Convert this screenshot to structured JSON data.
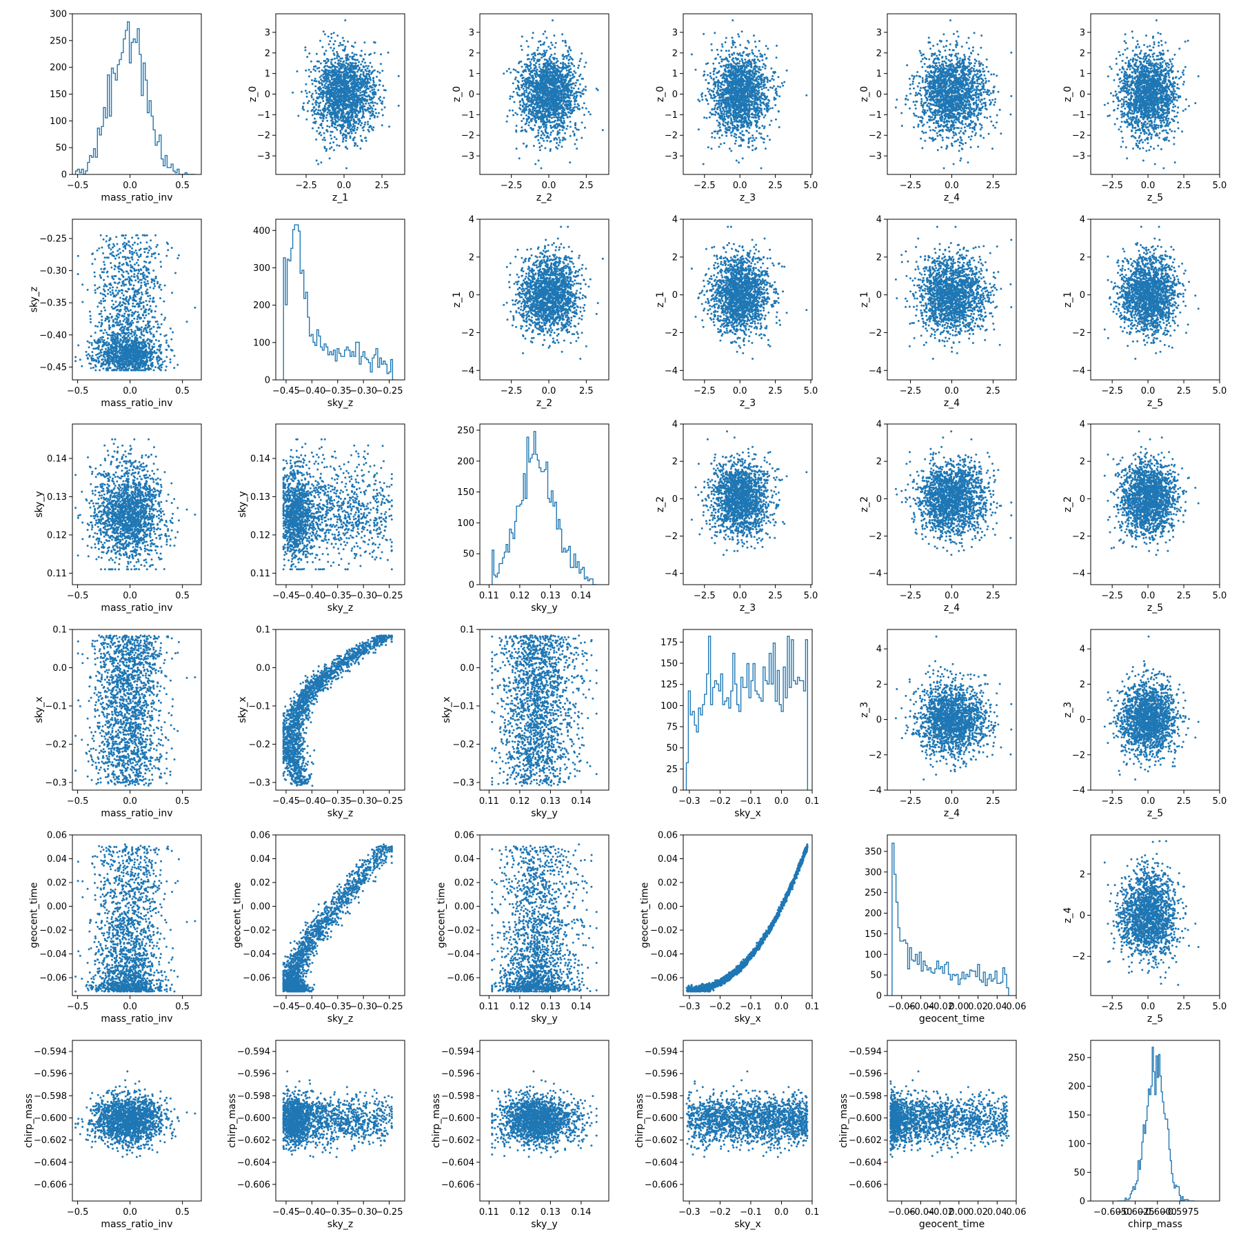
{
  "figure": {
    "colors": {
      "accent": "#1f77b4",
      "axes": "#000000",
      "background": "#ffffff"
    },
    "variables": [
      {
        "id": "mass_ratio_inv",
        "label": "mass_ratio_inv",
        "lim": [
          -0.55,
          0.68
        ],
        "ticks": [
          -0.5,
          0.0,
          0.5
        ],
        "tick_labels": [
          "−0.5",
          "0.0",
          "0.5"
        ],
        "mean": -0.02,
        "sd": 0.17,
        "lo": -0.52,
        "hi": 0.62
      },
      {
        "id": "sky_z",
        "label": "sky_z",
        "lim": [
          -0.47,
          -0.22
        ],
        "ticks": [
          -0.45,
          -0.4,
          -0.35,
          -0.3,
          -0.25
        ],
        "tick_labels": [
          "−0.45",
          "−0.40",
          "−0.35",
          "−0.30",
          "−0.25"
        ],
        "mean": -0.385,
        "sd": 0.025,
        "lo": -0.455,
        "hi": -0.24
      },
      {
        "id": "sky_y",
        "label": "sky_y",
        "lim": [
          0.107,
          0.149
        ],
        "ticks": [
          0.11,
          0.12,
          0.13,
          0.14
        ],
        "tick_labels": [
          "0.11",
          "0.12",
          "0.13",
          "0.14"
        ],
        "mean": 0.1255,
        "sd": 0.0055,
        "lo": 0.111,
        "hi": 0.145
      },
      {
        "id": "sky_x",
        "label": "sky_x",
        "lim": [
          -0.32,
          0.1
        ],
        "ticks": [
          -0.3,
          -0.2,
          -0.1,
          0.0,
          0.1
        ],
        "tick_labels": [
          "−0.3",
          "−0.2",
          "−0.1",
          "0.0",
          "0.1"
        ],
        "mean": -0.12,
        "sd": 0.085,
        "lo": -0.31,
        "hi": 0.085
      },
      {
        "id": "geocent_time",
        "label": "geocent_time",
        "lim": [
          -0.075,
          0.06
        ],
        "ticks": [
          -0.06,
          -0.04,
          -0.02,
          0.0,
          0.02,
          0.04,
          0.06
        ],
        "tick_labels": [
          "−0.06",
          "−0.04",
          "−0.02",
          "0.00",
          "0.02",
          "0.04",
          "0.06"
        ],
        "mean": -0.045,
        "sd": 0.02,
        "lo": -0.07,
        "hi": 0.052
      },
      {
        "id": "chirp_mass",
        "label": "chirp_mass",
        "lim": [
          -0.6075,
          -0.593
        ],
        "ticks": [
          -0.606,
          -0.604,
          -0.602,
          -0.6,
          -0.598,
          -0.596,
          -0.594
        ],
        "tick_labels": [
          "−0.606",
          "−0.604",
          "−0.602",
          "−0.600",
          "−0.598",
          "−0.596",
          "−0.594"
        ],
        "mean": -0.6003,
        "sd": 0.0012,
        "lo": -0.6045,
        "hi": -0.5958
      },
      {
        "id": "z_0",
        "label": "z_0",
        "lim": [
          -3.9,
          3.9
        ],
        "ticks": [
          -3,
          -2,
          -1,
          0,
          1,
          2,
          3
        ],
        "tick_labels": [
          "−3",
          "−2",
          "−1",
          "0",
          "1",
          "2",
          "3"
        ],
        "mean": 0,
        "sd": 1,
        "lo": -3.6,
        "hi": 3.5
      },
      {
        "id": "z_1",
        "label": "z_1",
        "lim": [
          -4.5,
          4.0
        ],
        "ticks": [
          -4,
          -2,
          0,
          2,
          4
        ],
        "tick_labels": [
          "−4",
          "−2",
          "0",
          "2",
          "4"
        ],
        "xticks": [
          -2.5,
          0.0,
          2.5
        ],
        "xtick_labels": [
          "−2.5",
          "0.0",
          "2.5"
        ],
        "mean": 0,
        "sd": 1,
        "lo": -4.2,
        "hi": 3.6
      },
      {
        "id": "z_2",
        "label": "z_2",
        "lim": [
          -4.6,
          4.0
        ],
        "ticks": [
          -4,
          -2,
          0,
          2,
          4
        ],
        "tick_labels": [
          "−4",
          "−2",
          "0",
          "2",
          "4"
        ],
        "xticks": [
          -2.5,
          0.0,
          2.5
        ],
        "xtick_labels": [
          "−2.5",
          "0.0",
          "2.5"
        ],
        "mean": 0,
        "sd": 1,
        "lo": -4.2,
        "hi": 3.6
      },
      {
        "id": "z_3",
        "label": "z_3",
        "lim": [
          -4.0,
          5.1
        ],
        "ticks": [
          -4,
          -2,
          0,
          2,
          4
        ],
        "tick_labels": [
          "−4",
          "−2",
          "0",
          "2",
          "4"
        ],
        "xticks": [
          -2.5,
          0.0,
          2.5,
          5.0
        ],
        "xtick_labels": [
          "−2.5",
          "0.0",
          "2.5",
          "5.0"
        ],
        "mean": 0,
        "sd": 1,
        "lo": -3.5,
        "hi": 4.8
      },
      {
        "id": "z_4",
        "label": "z_4",
        "lim": [
          -3.9,
          3.9
        ],
        "ticks": [
          -2,
          0,
          2
        ],
        "tick_labels": [
          "−2",
          "0",
          "2"
        ],
        "xticks": [
          -2.5,
          0.0,
          2.5
        ],
        "xtick_labels": [
          "−2.5",
          "0.0",
          "2.5"
        ],
        "mean": 0,
        "sd": 1,
        "lo": -3.6,
        "hi": 3.7
      },
      {
        "id": "z_5",
        "label": "z_5",
        "lim": [
          -4.0,
          5.0
        ],
        "ticks": [
          -2.5,
          0.0,
          2.5,
          5.0
        ],
        "tick_labels": [
          "−2.5",
          "0.0",
          "2.5",
          "5.0"
        ],
        "mean": 0,
        "sd": 1,
        "lo": -3.6,
        "hi": 4.7
      }
    ],
    "chirp_mass_hist_xticks": [
      -0.605,
      -0.6025,
      -0.6,
      -0.5975
    ],
    "chirp_mass_hist_xtick_labels": [
      "−0.6050",
      "−0.6025",
      "−0.6000",
      "−0.5975"
    ]
  },
  "chart_data": {
    "type": "scatter",
    "title": "",
    "samples_per_panel": 1800,
    "grid": false,
    "legend": "none",
    "panels": [
      {
        "row": 0,
        "col": 0,
        "type": "histogram",
        "x": "mass_ratio_inv",
        "ylim": [
          0,
          300
        ],
        "yticks": [
          0,
          50,
          100,
          150,
          200,
          250,
          300
        ],
        "peak": 285
      },
      {
        "row": 0,
        "col": 1,
        "type": "scatter",
        "x": "z_1",
        "y": "z_0"
      },
      {
        "row": 0,
        "col": 2,
        "type": "scatter",
        "x": "z_2",
        "y": "z_0"
      },
      {
        "row": 0,
        "col": 3,
        "type": "scatter",
        "x": "z_3",
        "y": "z_0"
      },
      {
        "row": 0,
        "col": 4,
        "type": "scatter",
        "x": "z_4",
        "y": "z_0"
      },
      {
        "row": 0,
        "col": 5,
        "type": "scatter",
        "x": "z_5",
        "y": "z_0"
      },
      {
        "row": 1,
        "col": 0,
        "type": "scatter",
        "x": "mass_ratio_inv",
        "y": "sky_z"
      },
      {
        "row": 1,
        "col": 1,
        "type": "histogram",
        "x": "sky_z",
        "ylim": [
          0,
          430
        ],
        "yticks": [
          0,
          100,
          200,
          300,
          400
        ],
        "peak": 415
      },
      {
        "row": 1,
        "col": 2,
        "type": "scatter",
        "x": "z_2",
        "y": "z_1"
      },
      {
        "row": 1,
        "col": 3,
        "type": "scatter",
        "x": "z_3",
        "y": "z_1"
      },
      {
        "row": 1,
        "col": 4,
        "type": "scatter",
        "x": "z_4",
        "y": "z_1"
      },
      {
        "row": 1,
        "col": 5,
        "type": "scatter",
        "x": "z_5",
        "y": "z_1"
      },
      {
        "row": 2,
        "col": 0,
        "type": "scatter",
        "x": "mass_ratio_inv",
        "y": "sky_y"
      },
      {
        "row": 2,
        "col": 1,
        "type": "scatter",
        "x": "sky_z",
        "y": "sky_y"
      },
      {
        "row": 2,
        "col": 2,
        "type": "histogram",
        "x": "sky_y",
        "ylim": [
          0,
          260
        ],
        "yticks": [
          0,
          50,
          100,
          150,
          200,
          250
        ],
        "peak": 248
      },
      {
        "row": 2,
        "col": 3,
        "type": "scatter",
        "x": "z_3",
        "y": "z_2"
      },
      {
        "row": 2,
        "col": 4,
        "type": "scatter",
        "x": "z_4",
        "y": "z_2"
      },
      {
        "row": 2,
        "col": 5,
        "type": "scatter",
        "x": "z_5",
        "y": "z_2"
      },
      {
        "row": 3,
        "col": 0,
        "type": "scatter",
        "x": "mass_ratio_inv",
        "y": "sky_x"
      },
      {
        "row": 3,
        "col": 1,
        "type": "scatter",
        "x": "sky_z",
        "y": "sky_x"
      },
      {
        "row": 3,
        "col": 2,
        "type": "scatter",
        "x": "sky_y",
        "y": "sky_x"
      },
      {
        "row": 3,
        "col": 3,
        "type": "histogram",
        "x": "sky_x",
        "ylim": [
          0,
          190
        ],
        "yticks": [
          0,
          25,
          50,
          75,
          100,
          125,
          150,
          175
        ],
        "peak": 182
      },
      {
        "row": 3,
        "col": 4,
        "type": "scatter",
        "x": "z_4",
        "y": "z_3"
      },
      {
        "row": 3,
        "col": 5,
        "type": "scatter",
        "x": "z_5",
        "y": "z_3"
      },
      {
        "row": 4,
        "col": 0,
        "type": "scatter",
        "x": "mass_ratio_inv",
        "y": "geocent_time"
      },
      {
        "row": 4,
        "col": 1,
        "type": "scatter",
        "x": "sky_z",
        "y": "geocent_time"
      },
      {
        "row": 4,
        "col": 2,
        "type": "scatter",
        "x": "sky_y",
        "y": "geocent_time"
      },
      {
        "row": 4,
        "col": 3,
        "type": "scatter",
        "x": "sky_x",
        "y": "geocent_time"
      },
      {
        "row": 4,
        "col": 4,
        "type": "histogram",
        "x": "geocent_time",
        "ylim": [
          0,
          390
        ],
        "yticks": [
          0,
          50,
          100,
          150,
          200,
          250,
          300,
          350
        ],
        "peak": 370
      },
      {
        "row": 4,
        "col": 5,
        "type": "scatter",
        "x": "z_5",
        "y": "z_4"
      },
      {
        "row": 5,
        "col": 0,
        "type": "scatter",
        "x": "mass_ratio_inv",
        "y": "chirp_mass"
      },
      {
        "row": 5,
        "col": 1,
        "type": "scatter",
        "x": "sky_z",
        "y": "chirp_mass"
      },
      {
        "row": 5,
        "col": 2,
        "type": "scatter",
        "x": "sky_y",
        "y": "chirp_mass"
      },
      {
        "row": 5,
        "col": 3,
        "type": "scatter",
        "x": "sky_x",
        "y": "chirp_mass"
      },
      {
        "row": 5,
        "col": 4,
        "type": "scatter",
        "x": "geocent_time",
        "y": "chirp_mass"
      },
      {
        "row": 5,
        "col": 5,
        "type": "histogram",
        "x": "chirp_mass",
        "ylim": [
          0,
          280
        ],
        "yticks": [
          0,
          50,
          100,
          150,
          200,
          250
        ],
        "peak": 268
      }
    ]
  }
}
